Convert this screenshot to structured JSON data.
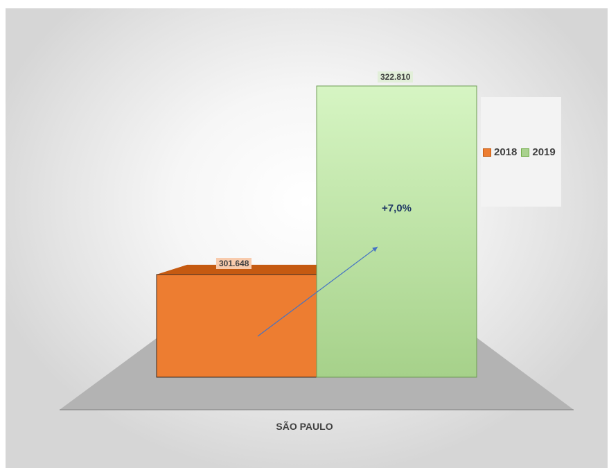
{
  "chart_data": {
    "type": "bar",
    "categories": [
      "SÃO PAULO"
    ],
    "series": [
      {
        "name": "2018",
        "values": [
          301648
        ],
        "value_label": "301.648",
        "color": "#ed7d31"
      },
      {
        "name": "2019",
        "values": [
          322810
        ],
        "value_label": "322.810",
        "color": "#a9d18e"
      }
    ],
    "annotation": "+7,0%",
    "ylim": [
      0,
      322810
    ],
    "legend_position": "right",
    "grid": false,
    "style": "3d"
  }
}
